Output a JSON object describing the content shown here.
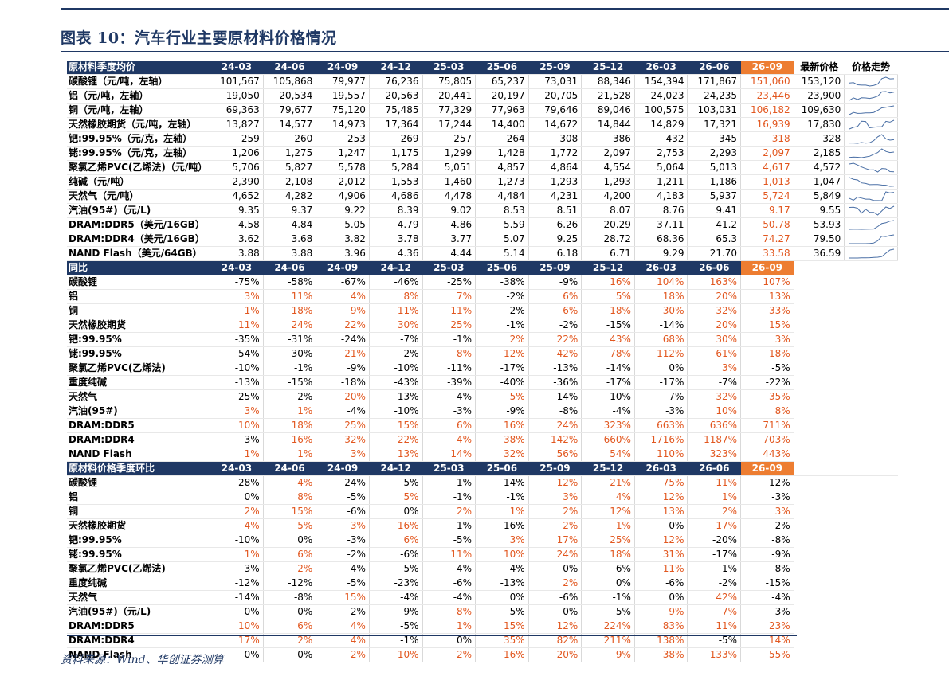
{
  "title": "图表 10：汽车行业主要原材料价格情况",
  "source": "资料来源：Wind、华创证券测算",
  "colors": {
    "navy": "#1f3864",
    "orange": "#ed7d31",
    "red_text": "#e2571f",
    "spark": "#4a6fa5"
  },
  "periods": [
    "24-03",
    "24-06",
    "24-09",
    "24-12",
    "25-03",
    "25-06",
    "25-09",
    "25-12",
    "26-03",
    "26-06",
    "26-09"
  ],
  "section1": {
    "header": "原材料季度均价",
    "extra_headers": [
      "最新价格",
      "价格走势"
    ],
    "rows": [
      {
        "name": "碳酸锂（元/吨，左轴）",
        "values": [
          "101,567",
          "105,868",
          "79,977",
          "76,236",
          "75,805",
          "65,237",
          "73,031",
          "88,346",
          "154,394",
          "171,867",
          "151,060"
        ],
        "latest": "153,120",
        "spark": [
          101567,
          105868,
          79977,
          76236,
          75805,
          65237,
          73031,
          88346,
          154394,
          171867,
          151060,
          153120
        ]
      },
      {
        "name": "铝（元/吨，左轴）",
        "values": [
          "19,050",
          "20,534",
          "19,557",
          "20,563",
          "20,441",
          "20,197",
          "20,705",
          "21,528",
          "24,023",
          "24,235",
          "23,446"
        ],
        "latest": "23,900",
        "spark": [
          19050,
          20534,
          19557,
          20563,
          20441,
          20197,
          20705,
          21528,
          24023,
          24235,
          23446,
          23900
        ]
      },
      {
        "name": "铜（元/吨，左轴）",
        "values": [
          "69,363",
          "79,677",
          "75,120",
          "75,485",
          "77,329",
          "77,963",
          "79,646",
          "89,046",
          "100,575",
          "103,031",
          "106,182"
        ],
        "latest": "109,630",
        "spark": [
          69363,
          79677,
          75120,
          75485,
          77329,
          77963,
          79646,
          89046,
          100575,
          103031,
          106182,
          109630
        ]
      },
      {
        "name": "天然橡胶期货（元/吨，左轴）",
        "values": [
          "13,827",
          "14,577",
          "14,973",
          "17,364",
          "17,244",
          "14,400",
          "14,672",
          "14,844",
          "14,829",
          "17,321",
          "16,939"
        ],
        "latest": "17,830",
        "spark": [
          13827,
          14577,
          14973,
          17364,
          17244,
          14400,
          14672,
          14844,
          14829,
          17321,
          16939,
          17830
        ]
      },
      {
        "name": "钯:99.95%（元/克，左轴）",
        "values": [
          "259",
          "260",
          "253",
          "269",
          "257",
          "264",
          "308",
          "386",
          "432",
          "345",
          "318"
        ],
        "latest": "328",
        "spark": [
          259,
          260,
          253,
          269,
          257,
          264,
          308,
          386,
          432,
          345,
          318,
          328
        ]
      },
      {
        "name": "铑:99.95%（元/克，左轴）",
        "values": [
          "1,206",
          "1,275",
          "1,247",
          "1,175",
          "1,299",
          "1,428",
          "1,772",
          "2,097",
          "2,753",
          "2,293",
          "2,097"
        ],
        "latest": "2,185",
        "spark": [
          1206,
          1275,
          1247,
          1175,
          1299,
          1428,
          1772,
          2097,
          2753,
          2293,
          2097,
          2185
        ]
      },
      {
        "name": "聚氯乙烯PVC(乙烯法)（元/吨）",
        "values": [
          "5,706",
          "5,827",
          "5,578",
          "5,284",
          "5,051",
          "4,857",
          "4,864",
          "4,554",
          "5,064",
          "5,013",
          "4,617"
        ],
        "latest": "4,572",
        "spark": [
          5706,
          5827,
          5578,
          5284,
          5051,
          4857,
          4864,
          4554,
          5064,
          5013,
          4617,
          4572
        ]
      },
      {
        "name": "纯碱（元/吨）",
        "values": [
          "2,390",
          "2,108",
          "2,012",
          "1,553",
          "1,460",
          "1,273",
          "1,293",
          "1,293",
          "1,211",
          "1,186",
          "1,013"
        ],
        "latest": "1,047",
        "spark": [
          2390,
          2108,
          2012,
          1553,
          1460,
          1273,
          1293,
          1293,
          1211,
          1186,
          1013,
          1047
        ]
      },
      {
        "name": "天然气（元/吨）",
        "values": [
          "4,652",
          "4,282",
          "4,906",
          "4,686",
          "4,478",
          "4,484",
          "4,231",
          "4,200",
          "4,183",
          "5,937",
          "5,724"
        ],
        "latest": "5,849",
        "spark": [
          4652,
          4282,
          4906,
          4686,
          4478,
          4484,
          4231,
          4200,
          4183,
          5937,
          5724,
          5849
        ]
      },
      {
        "name": "汽油(95#)（元/L)",
        "values": [
          "9.35",
          "9.37",
          "9.22",
          "8.39",
          "9.02",
          "8.53",
          "8.51",
          "8.07",
          "8.76",
          "9.41",
          "9.17"
        ],
        "latest": "9.55",
        "spark": [
          9.35,
          9.37,
          9.22,
          8.39,
          9.02,
          8.53,
          8.51,
          8.07,
          8.76,
          9.41,
          9.17,
          9.55
        ]
      },
      {
        "name": "DRAM:DDR5（美元/16GB）",
        "values": [
          "4.58",
          "4.84",
          "5.05",
          "4.79",
          "4.86",
          "5.59",
          "6.26",
          "20.29",
          "37.11",
          "41.2",
          "50.78"
        ],
        "latest": "53.93",
        "spark": [
          4.58,
          4.84,
          5.05,
          4.79,
          4.86,
          5.59,
          6.26,
          20.29,
          37.11,
          41.2,
          50.78,
          53.93
        ]
      },
      {
        "name": "DRAM:DDR4（美元/16GB）",
        "values": [
          "3.62",
          "3.68",
          "3.82",
          "3.78",
          "3.77",
          "5.07",
          "9.25",
          "28.72",
          "68.36",
          "65.3",
          "74.27"
        ],
        "latest": "79.50",
        "spark": [
          3.62,
          3.68,
          3.82,
          3.78,
          3.77,
          5.07,
          9.25,
          28.72,
          68.36,
          65.3,
          74.27,
          79.5
        ]
      },
      {
        "name": "NAND Flash（美元/64GB）",
        "values": [
          "3.88",
          "3.88",
          "3.96",
          "4.36",
          "4.44",
          "5.14",
          "6.18",
          "6.71",
          "9.29",
          "21.70",
          "33.58"
        ],
        "latest": "36.59",
        "spark": [
          3.88,
          3.88,
          3.96,
          4.36,
          4.44,
          5.14,
          6.18,
          6.71,
          9.29,
          21.7,
          33.58,
          36.59
        ]
      }
    ]
  },
  "section2": {
    "header": "同比",
    "rows": [
      {
        "name": "碳酸锂",
        "values": [
          "-75%",
          "-58%",
          "-67%",
          "-46%",
          "-25%",
          "-38%",
          "-9%",
          "16%",
          "104%",
          "163%",
          "107%"
        ]
      },
      {
        "name": "铝",
        "values": [
          "3%",
          "11%",
          "4%",
          "8%",
          "7%",
          "-2%",
          "6%",
          "5%",
          "18%",
          "20%",
          "13%"
        ]
      },
      {
        "name": "铜",
        "values": [
          "1%",
          "18%",
          "9%",
          "11%",
          "11%",
          "-2%",
          "6%",
          "18%",
          "30%",
          "32%",
          "33%"
        ]
      },
      {
        "name": "天然橡胶期货",
        "values": [
          "11%",
          "24%",
          "22%",
          "30%",
          "25%",
          "-1%",
          "-2%",
          "-15%",
          "-14%",
          "20%",
          "15%"
        ]
      },
      {
        "name": "钯:99.95%",
        "values": [
          "-35%",
          "-31%",
          "-24%",
          "-7%",
          "-1%",
          "2%",
          "22%",
          "43%",
          "68%",
          "30%",
          "3%"
        ]
      },
      {
        "name": "铑:99.95%",
        "values": [
          "-54%",
          "-30%",
          "21%",
          "-2%",
          "8%",
          "12%",
          "42%",
          "78%",
          "112%",
          "61%",
          "18%"
        ]
      },
      {
        "name": "聚氯乙烯PVC(乙烯法)",
        "values": [
          "-10%",
          "-1%",
          "-9%",
          "-10%",
          "-11%",
          "-17%",
          "-13%",
          "-14%",
          "0%",
          "3%",
          "-5%"
        ]
      },
      {
        "name": "重度纯碱",
        "values": [
          "-13%",
          "-15%",
          "-18%",
          "-43%",
          "-39%",
          "-40%",
          "-36%",
          "-17%",
          "-17%",
          "-7%",
          "-22%"
        ]
      },
      {
        "name": "天然气",
        "values": [
          "-25%",
          "-2%",
          "20%",
          "-13%",
          "-4%",
          "5%",
          "-14%",
          "-10%",
          "-7%",
          "32%",
          "35%"
        ]
      },
      {
        "name": "汽油(95#)",
        "values": [
          "3%",
          "1%",
          "-4%",
          "-10%",
          "-3%",
          "-9%",
          "-8%",
          "-4%",
          "-3%",
          "10%",
          "8%"
        ]
      },
      {
        "name": "DRAM:DDR5",
        "values": [
          "10%",
          "18%",
          "25%",
          "15%",
          "6%",
          "16%",
          "24%",
          "323%",
          "663%",
          "636%",
          "711%"
        ]
      },
      {
        "name": "DRAM:DDR4",
        "values": [
          "-3%",
          "16%",
          "32%",
          "22%",
          "4%",
          "38%",
          "142%",
          "660%",
          "1716%",
          "1187%",
          "703%"
        ]
      },
      {
        "name": "NAND Flash",
        "values": [
          "1%",
          "1%",
          "3%",
          "13%",
          "14%",
          "32%",
          "56%",
          "54%",
          "110%",
          "323%",
          "443%"
        ]
      }
    ]
  },
  "section3": {
    "header": "原材料价格季度环比",
    "rows": [
      {
        "name": "碳酸锂",
        "values": [
          "-28%",
          "4%",
          "-24%",
          "-5%",
          "-1%",
          "-14%",
          "12%",
          "21%",
          "75%",
          "11%",
          "-12%"
        ]
      },
      {
        "name": "铝",
        "values": [
          "0%",
          "8%",
          "-5%",
          "5%",
          "-1%",
          "-1%",
          "3%",
          "4%",
          "12%",
          "1%",
          "-3%"
        ]
      },
      {
        "name": "铜",
        "values": [
          "2%",
          "15%",
          "-6%",
          "0%",
          "2%",
          "1%",
          "2%",
          "12%",
          "13%",
          "2%",
          "3%"
        ]
      },
      {
        "name": "天然橡胶期货",
        "values": [
          "4%",
          "5%",
          "3%",
          "16%",
          "-1%",
          "-16%",
          "2%",
          "1%",
          "0%",
          "17%",
          "-2%"
        ]
      },
      {
        "name": "钯:99.95%",
        "values": [
          "-10%",
          "0%",
          "-3%",
          "6%",
          "-5%",
          "3%",
          "17%",
          "25%",
          "12%",
          "-20%",
          "-8%"
        ]
      },
      {
        "name": "铑:99.95%",
        "values": [
          "1%",
          "6%",
          "-2%",
          "-6%",
          "11%",
          "10%",
          "24%",
          "18%",
          "31%",
          "-17%",
          "-9%"
        ]
      },
      {
        "name": "聚氯乙烯PVC(乙烯法)",
        "values": [
          "-3%",
          "2%",
          "-4%",
          "-5%",
          "-4%",
          "-4%",
          "0%",
          "-6%",
          "11%",
          "-1%",
          "-8%"
        ]
      },
      {
        "name": "重度纯碱",
        "values": [
          "-12%",
          "-12%",
          "-5%",
          "-23%",
          "-6%",
          "-13%",
          "2%",
          "0%",
          "-6%",
          "-2%",
          "-15%"
        ]
      },
      {
        "name": "天然气",
        "values": [
          "-14%",
          "-8%",
          "15%",
          "-4%",
          "-4%",
          "0%",
          "-6%",
          "-1%",
          "0%",
          "42%",
          "-4%"
        ]
      },
      {
        "name": "汽油(95#)（元/L)",
        "values": [
          "0%",
          "0%",
          "-2%",
          "-9%",
          "8%",
          "-5%",
          "0%",
          "-5%",
          "9%",
          "7%",
          "-3%"
        ]
      },
      {
        "name": "DRAM:DDR5",
        "values": [
          "10%",
          "6%",
          "4%",
          "-5%",
          "1%",
          "15%",
          "12%",
          "224%",
          "83%",
          "11%",
          "23%"
        ]
      },
      {
        "name": "DRAM:DDR4",
        "values": [
          "17%",
          "2%",
          "4%",
          "-1%",
          "0%",
          "35%",
          "82%",
          "211%",
          "138%",
          "-5%",
          "14%"
        ]
      },
      {
        "name": "NAND Flash",
        "values": [
          "0%",
          "0%",
          "2%",
          "10%",
          "2%",
          "16%",
          "20%",
          "9%",
          "38%",
          "133%",
          "55%"
        ]
      }
    ]
  }
}
